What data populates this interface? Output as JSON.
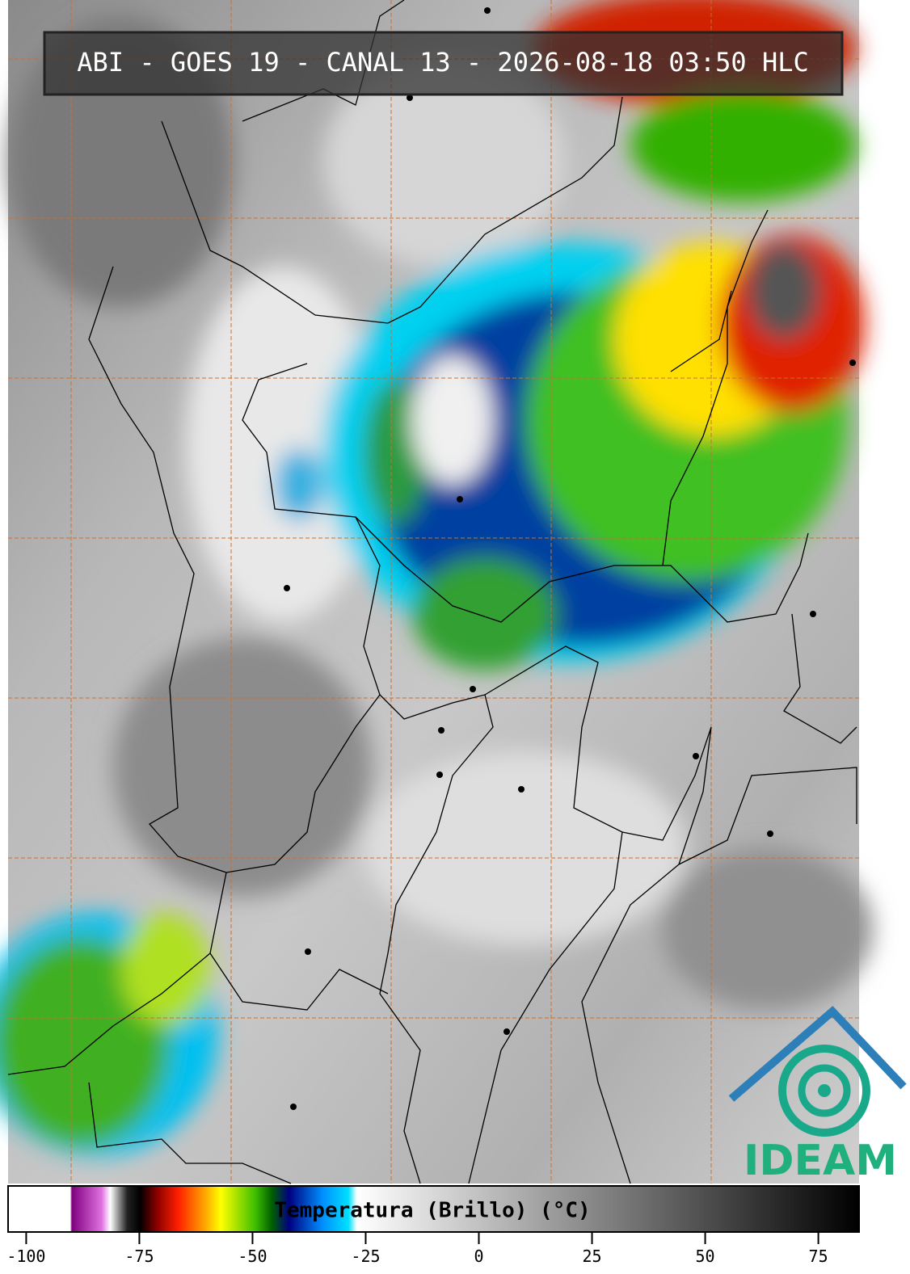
{
  "header": {
    "title": "ABI - GOES 19 - CANAL 13 - 2026-08-18 03:50 HLC"
  },
  "colorbar": {
    "label": "Temperatura (Brillo) (°C)",
    "range": [
      -104,
      84
    ],
    "ticks": [
      -100,
      -75,
      -50,
      -25,
      0,
      25,
      50,
      75
    ]
  },
  "logo": {
    "text": "IDEAM"
  }
}
